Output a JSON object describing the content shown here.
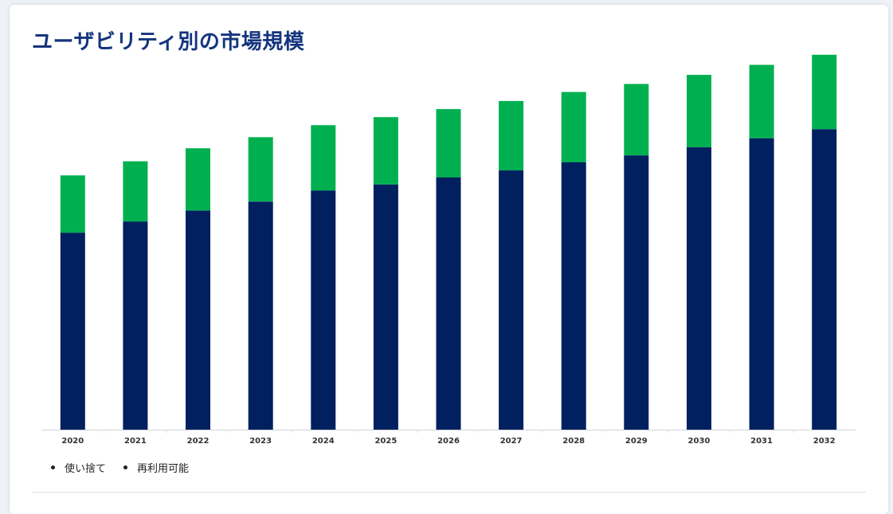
{
  "chart_data": {
    "type": "bar",
    "stacked": true,
    "title": "ユーザビリティ別の市場規模",
    "categories": [
      "2020",
      "2021",
      "2022",
      "2023",
      "2024",
      "2025",
      "2026",
      "2027",
      "2028",
      "2029",
      "2030",
      "2031",
      "2032"
    ],
    "series": [
      {
        "name": "使い捨て",
        "color": "#00205f",
        "values": [
          196,
          207,
          218,
          227,
          238,
          244,
          251,
          258,
          266,
          273,
          281,
          290,
          299
        ]
      },
      {
        "name": "再利用可能",
        "color": "#00b050",
        "values": [
          57,
          60,
          62,
          64,
          65,
          67,
          68,
          69,
          70,
          71,
          72,
          73,
          74
        ]
      }
    ],
    "ylim": [
      0,
      380
    ],
    "grid": false,
    "legend": "bottom-left"
  }
}
